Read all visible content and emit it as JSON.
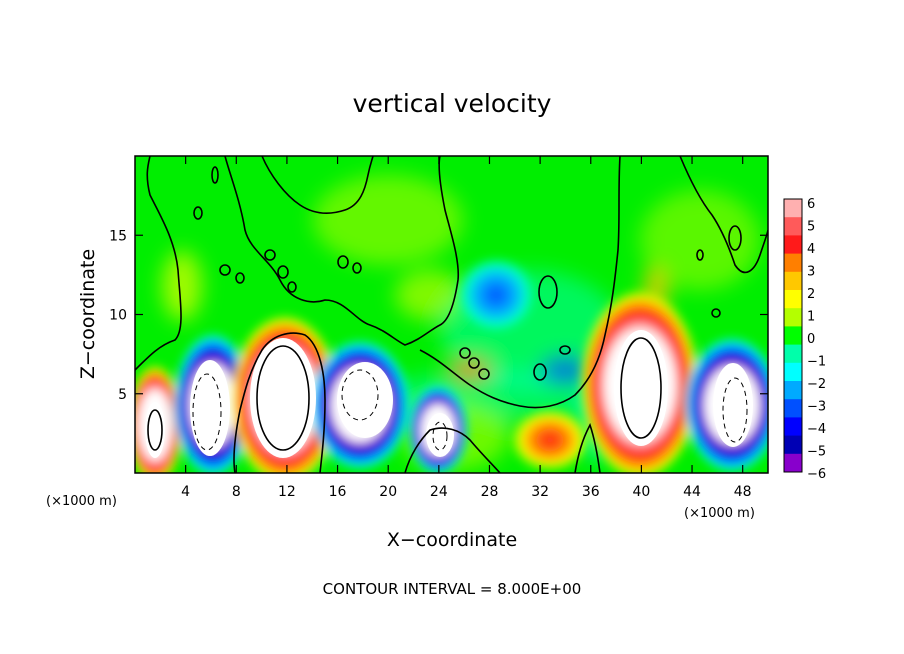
{
  "chart_data": {
    "type": "heatmap",
    "title": "vertical velocity",
    "xlabel": "X−coordinate",
    "ylabel": "Z−coordinate",
    "x_unit_left": "(×1000 m)",
    "x_unit_right": "(×1000 m)",
    "note": "CONTOUR INTERVAL = 8.000E+00",
    "xlim": [
      0,
      50
    ],
    "ylim": [
      0,
      20
    ],
    "x_ticks": [
      "4",
      "8",
      "12",
      "16",
      "20",
      "24",
      "28",
      "32",
      "36",
      "40",
      "44",
      "48"
    ],
    "y_ticks": [
      "5",
      "10",
      "15"
    ],
    "colorbar": {
      "levels": [
        "6",
        "5",
        "4",
        "3",
        "2",
        "1",
        "0",
        "−1",
        "−2",
        "−3",
        "−4",
        "−5",
        "−6"
      ],
      "colors": [
        "#ffb0b0",
        "#ff5a5a",
        "#ff1a1a",
        "#ff7f00",
        "#ffc800",
        "#ffff00",
        "#b4ff00",
        "#00ff00",
        "#00ffaa",
        "#00ffff",
        "#00aaff",
        "#0050ff",
        "#0000ff",
        "#0000b4",
        "#8800cc"
      ]
    },
    "features": [
      {
        "kind": "updraft",
        "x": 1.5,
        "z": 2.8,
        "peak": "above 6"
      },
      {
        "kind": "downdraft",
        "x": 5.5,
        "z": 3.5,
        "peak": "below -6"
      },
      {
        "kind": "updraft",
        "x": 11,
        "z": 4.8,
        "peak": "above 6"
      },
      {
        "kind": "downdraft",
        "x": 18.5,
        "z": 4.3,
        "peak": "below -6"
      },
      {
        "kind": "downdraft",
        "x": 24,
        "z": 2.4,
        "peak": "below -6"
      },
      {
        "kind": "updraft",
        "x": 33.5,
        "z": 2.0,
        "peak": "4"
      },
      {
        "kind": "downdraft",
        "x": 28.5,
        "z": 11.5,
        "peak": "-3"
      },
      {
        "kind": "updraft",
        "x": 39.5,
        "z": 5.5,
        "peak": "above 6"
      },
      {
        "kind": "downdraft",
        "x": 47.5,
        "z": 4.5,
        "peak": "below -6"
      }
    ]
  }
}
